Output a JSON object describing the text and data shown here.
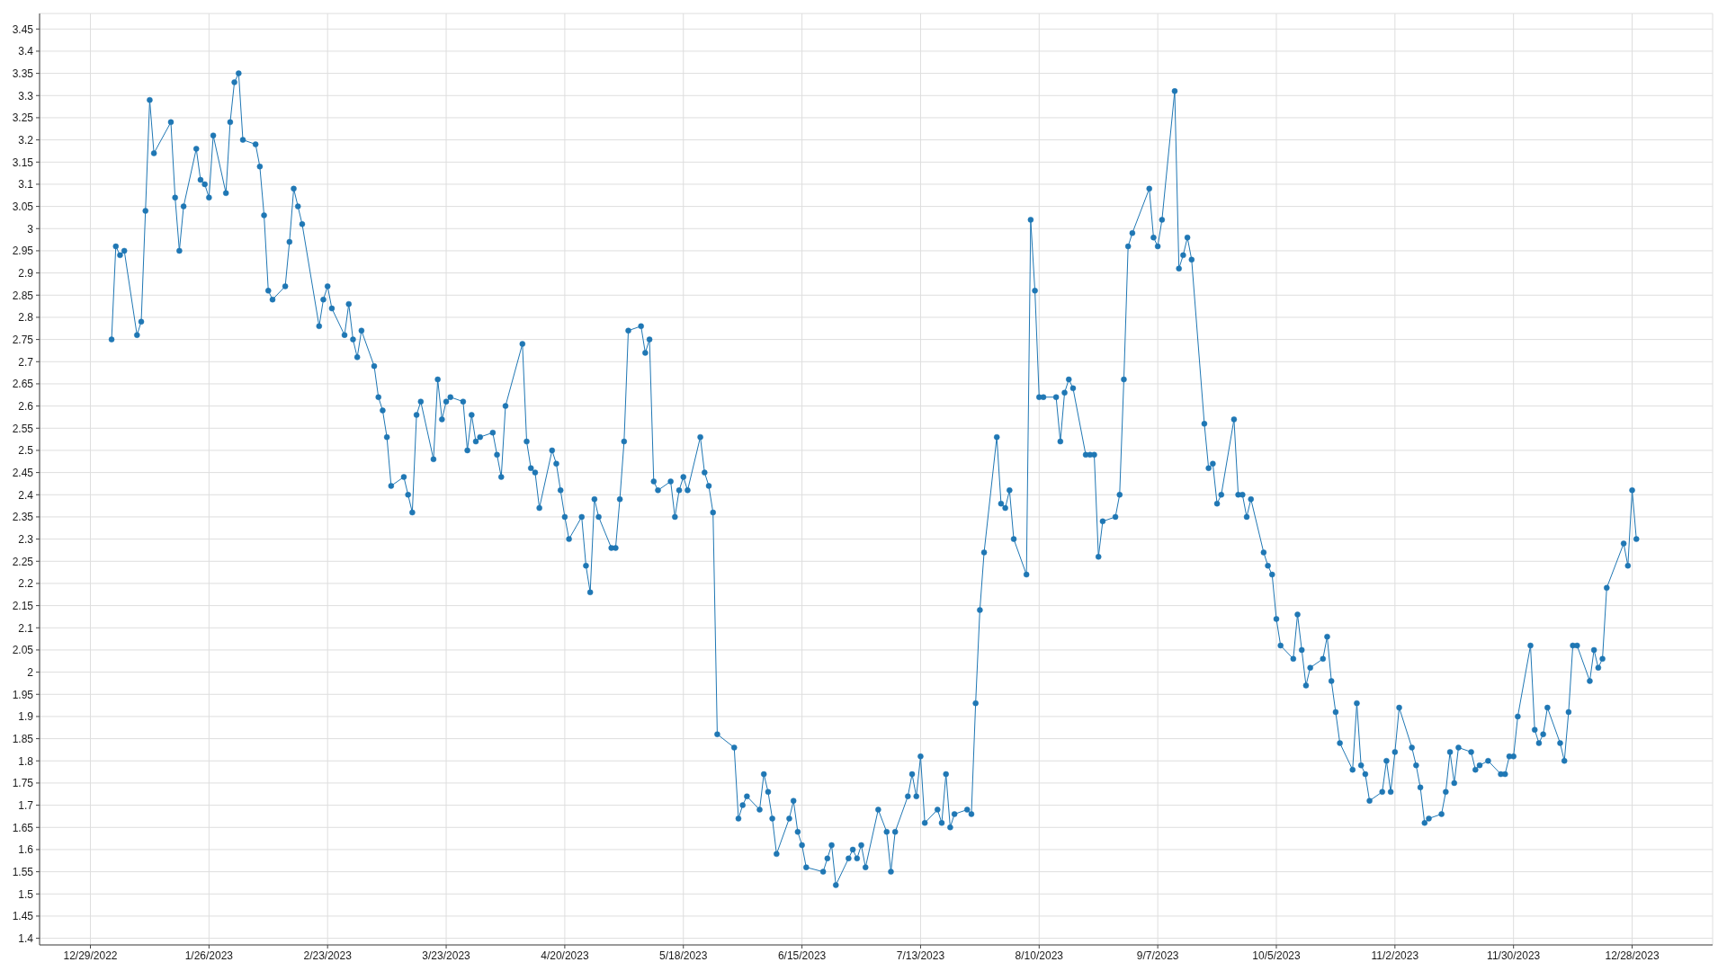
{
  "chart_data": {
    "type": "line",
    "x": [
      "2023-01-03",
      "2023-01-04",
      "2023-01-05",
      "2023-01-06",
      "2023-01-09",
      "2023-01-10",
      "2023-01-11",
      "2023-01-12",
      "2023-01-13",
      "2023-01-17",
      "2023-01-18",
      "2023-01-19",
      "2023-01-20",
      "2023-01-23",
      "2023-01-24",
      "2023-01-25",
      "2023-01-26",
      "2023-01-27",
      "2023-01-30",
      "2023-01-31",
      "2023-02-01",
      "2023-02-02",
      "2023-02-03",
      "2023-02-06",
      "2023-02-07",
      "2023-02-08",
      "2023-02-09",
      "2023-02-10",
      "2023-02-13",
      "2023-02-14",
      "2023-02-15",
      "2023-02-16",
      "2023-02-17",
      "2023-02-21",
      "2023-02-22",
      "2023-02-23",
      "2023-02-24",
      "2023-02-27",
      "2023-02-28",
      "2023-03-01",
      "2023-03-02",
      "2023-03-03",
      "2023-03-06",
      "2023-03-07",
      "2023-03-08",
      "2023-03-09",
      "2023-03-10",
      "2023-03-13",
      "2023-03-14",
      "2023-03-15",
      "2023-03-16",
      "2023-03-17",
      "2023-03-20",
      "2023-03-21",
      "2023-03-22",
      "2023-03-23",
      "2023-03-24",
      "2023-03-27",
      "2023-03-28",
      "2023-03-29",
      "2023-03-30",
      "2023-03-31",
      "2023-04-03",
      "2023-04-04",
      "2023-04-05",
      "2023-04-06",
      "2023-04-10",
      "2023-04-11",
      "2023-04-12",
      "2023-04-13",
      "2023-04-14",
      "2023-04-17",
      "2023-04-18",
      "2023-04-19",
      "2023-04-20",
      "2023-04-21",
      "2023-04-24",
      "2023-04-25",
      "2023-04-26",
      "2023-04-27",
      "2023-04-28",
      "2023-05-01",
      "2023-05-02",
      "2023-05-03",
      "2023-05-04",
      "2023-05-05",
      "2023-05-08",
      "2023-05-09",
      "2023-05-10",
      "2023-05-11",
      "2023-05-12",
      "2023-05-15",
      "2023-05-16",
      "2023-05-17",
      "2023-05-18",
      "2023-05-19",
      "2023-05-22",
      "2023-05-23",
      "2023-05-24",
      "2023-05-25",
      "2023-05-26",
      "2023-05-30",
      "2023-05-31",
      "2023-06-01",
      "2023-06-02",
      "2023-06-05",
      "2023-06-06",
      "2023-06-07",
      "2023-06-08",
      "2023-06-09",
      "2023-06-12",
      "2023-06-13",
      "2023-06-14",
      "2023-06-15",
      "2023-06-16",
      "2023-06-20",
      "2023-06-21",
      "2023-06-22",
      "2023-06-23",
      "2023-06-26",
      "2023-06-27",
      "2023-06-28",
      "2023-06-29",
      "2023-06-30",
      "2023-07-03",
      "2023-07-05",
      "2023-07-06",
      "2023-07-07",
      "2023-07-10",
      "2023-07-11",
      "2023-07-12",
      "2023-07-13",
      "2023-07-14",
      "2023-07-17",
      "2023-07-18",
      "2023-07-19",
      "2023-07-20",
      "2023-07-21",
      "2023-07-24",
      "2023-07-25",
      "2023-07-26",
      "2023-07-27",
      "2023-07-28",
      "2023-07-31",
      "2023-08-01",
      "2023-08-02",
      "2023-08-03",
      "2023-08-04",
      "2023-08-07",
      "2023-08-08",
      "2023-08-09",
      "2023-08-10",
      "2023-08-11",
      "2023-08-14",
      "2023-08-15",
      "2023-08-16",
      "2023-08-17",
      "2023-08-18",
      "2023-08-21",
      "2023-08-22",
      "2023-08-23",
      "2023-08-24",
      "2023-08-25",
      "2023-08-28",
      "2023-08-29",
      "2023-08-30",
      "2023-08-31",
      "2023-09-01",
      "2023-09-05",
      "2023-09-06",
      "2023-09-07",
      "2023-09-08",
      "2023-09-11",
      "2023-09-12",
      "2023-09-13",
      "2023-09-14",
      "2023-09-15",
      "2023-09-18",
      "2023-09-19",
      "2023-09-20",
      "2023-09-21",
      "2023-09-22",
      "2023-09-25",
      "2023-09-26",
      "2023-09-27",
      "2023-09-28",
      "2023-09-29",
      "2023-10-02",
      "2023-10-03",
      "2023-10-04",
      "2023-10-05",
      "2023-10-06",
      "2023-10-09",
      "2023-10-10",
      "2023-10-11",
      "2023-10-12",
      "2023-10-13",
      "2023-10-16",
      "2023-10-17",
      "2023-10-18",
      "2023-10-19",
      "2023-10-20",
      "2023-10-23",
      "2023-10-24",
      "2023-10-25",
      "2023-10-26",
      "2023-10-27",
      "2023-10-30",
      "2023-10-31",
      "2023-11-01",
      "2023-11-02",
      "2023-11-03",
      "2023-11-06",
      "2023-11-07",
      "2023-11-08",
      "2023-11-09",
      "2023-11-10",
      "2023-11-13",
      "2023-11-14",
      "2023-11-15",
      "2023-11-16",
      "2023-11-17",
      "2023-11-20",
      "2023-11-21",
      "2023-11-22",
      "2023-11-24",
      "2023-11-27",
      "2023-11-28",
      "2023-11-29",
      "2023-11-30",
      "2023-12-01",
      "2023-12-04",
      "2023-12-05",
      "2023-12-06",
      "2023-12-07",
      "2023-12-08",
      "2023-12-11",
      "2023-12-12",
      "2023-12-13",
      "2023-12-14",
      "2023-12-15",
      "2023-12-18",
      "2023-12-19",
      "2023-12-20",
      "2023-12-21",
      "2023-12-22",
      "2023-12-26",
      "2023-12-27",
      "2023-12-28",
      "2023-12-29"
    ],
    "series": [
      {
        "color": "#1f77b4",
        "values": [
          2.75,
          2.96,
          2.94,
          2.95,
          2.76,
          2.79,
          3.04,
          3.29,
          3.17,
          3.24,
          3.07,
          2.95,
          3.05,
          3.18,
          3.11,
          3.1,
          3.07,
          3.21,
          3.08,
          3.24,
          3.33,
          3.35,
          3.2,
          3.19,
          3.14,
          3.03,
          2.86,
          2.84,
          2.87,
          2.97,
          3.09,
          3.05,
          3.01,
          2.78,
          2.84,
          2.87,
          2.82,
          2.76,
          2.83,
          2.75,
          2.71,
          2.77,
          2.69,
          2.62,
          2.59,
          2.53,
          2.42,
          2.44,
          2.4,
          2.36,
          2.58,
          2.61,
          2.48,
          2.66,
          2.57,
          2.61,
          2.62,
          2.61,
          2.5,
          2.58,
          2.52,
          2.53,
          2.54,
          2.49,
          2.44,
          2.6,
          2.74,
          2.52,
          2.46,
          2.45,
          2.37,
          2.5,
          2.47,
          2.41,
          2.35,
          2.3,
          2.35,
          2.24,
          2.18,
          2.39,
          2.35,
          2.28,
          2.28,
          2.39,
          2.52,
          2.77,
          2.78,
          2.72,
          2.75,
          2.43,
          2.41,
          2.43,
          2.35,
          2.41,
          2.44,
          2.41,
          2.53,
          2.45,
          2.42,
          2.36,
          1.86,
          1.83,
          1.67,
          1.7,
          1.72,
          1.69,
          1.77,
          1.73,
          1.67,
          1.59,
          1.67,
          1.71,
          1.64,
          1.61,
          1.56,
          1.55,
          1.58,
          1.61,
          1.52,
          1.58,
          1.6,
          1.58,
          1.61,
          1.56,
          1.69,
          1.64,
          1.55,
          1.64,
          1.72,
          1.77,
          1.72,
          1.81,
          1.66,
          1.69,
          1.66,
          1.77,
          1.65,
          1.68,
          1.69,
          1.68,
          1.93,
          2.14,
          2.27,
          2.53,
          2.38,
          2.37,
          2.41,
          2.3,
          2.22,
          3.02,
          2.86,
          2.62,
          2.62,
          2.62,
          2.52,
          2.63,
          2.66,
          2.64,
          2.49,
          2.49,
          2.49,
          2.26,
          2.34,
          2.35,
          2.4,
          2.66,
          2.96,
          2.99,
          3.09,
          2.98,
          2.96,
          3.02,
          3.31,
          2.91,
          2.94,
          2.98,
          2.93,
          2.56,
          2.46,
          2.47,
          2.38,
          2.4,
          2.57,
          2.4,
          2.4,
          2.35,
          2.39,
          2.27,
          2.24,
          2.22,
          2.12,
          2.06,
          2.03,
          2.13,
          2.05,
          1.97,
          2.01,
          2.03,
          2.08,
          1.98,
          1.91,
          1.84,
          1.78,
          1.93,
          1.79,
          1.77,
          1.71,
          1.73,
          1.8,
          1.73,
          1.82,
          1.92,
          1.83,
          1.79,
          1.74,
          1.66,
          1.67,
          1.68,
          1.73,
          1.82,
          1.75,
          1.83,
          1.82,
          1.78,
          1.79,
          1.8,
          1.77,
          1.77,
          1.81,
          1.81,
          1.9,
          2.06,
          1.87,
          1.84,
          1.86,
          1.92,
          1.84,
          1.8,
          1.91,
          2.06,
          2.06,
          1.98,
          2.05,
          2.01,
          2.03,
          2.19,
          2.29,
          2.24,
          2.41,
          2.3
        ]
      }
    ],
    "xlim": [
      "2022-12-17",
      "2024-01-16"
    ],
    "xticks": [
      {
        "value": "2022-12-29",
        "label": "12/29/2022"
      },
      {
        "value": "2023-01-26",
        "label": "1/26/2023"
      },
      {
        "value": "2023-02-23",
        "label": "2/23/2023"
      },
      {
        "value": "2023-03-23",
        "label": "3/23/2023"
      },
      {
        "value": "2023-04-20",
        "label": "4/20/2023"
      },
      {
        "value": "2023-05-18",
        "label": "5/18/2023"
      },
      {
        "value": "2023-06-15",
        "label": "6/15/2023"
      },
      {
        "value": "2023-07-13",
        "label": "7/13/2023"
      },
      {
        "value": "2023-08-10",
        "label": "8/10/2023"
      },
      {
        "value": "2023-09-07",
        "label": "9/7/2023"
      },
      {
        "value": "2023-10-05",
        "label": "10/5/2023"
      },
      {
        "value": "2023-11-02",
        "label": "11/2/2023"
      },
      {
        "value": "2023-11-30",
        "label": "11/30/2023"
      },
      {
        "value": "2023-12-28",
        "label": "12/28/2023"
      }
    ],
    "ylim": [
      1.385,
      3.485
    ],
    "yticks": [
      1.4,
      1.45,
      1.5,
      1.55,
      1.6,
      1.65,
      1.7,
      1.75,
      1.8,
      1.85,
      1.9,
      1.95,
      2,
      2.05,
      2.1,
      2.15,
      2.2,
      2.25,
      2.3,
      2.35,
      2.4,
      2.45,
      2.5,
      2.55,
      2.6,
      2.65,
      2.7,
      2.75,
      2.8,
      2.85,
      2.9,
      2.95,
      3,
      3.05,
      3.1,
      3.15,
      3.2,
      3.25,
      3.3,
      3.35,
      3.4,
      3.45
    ],
    "grid": true,
    "marker": "circle"
  }
}
